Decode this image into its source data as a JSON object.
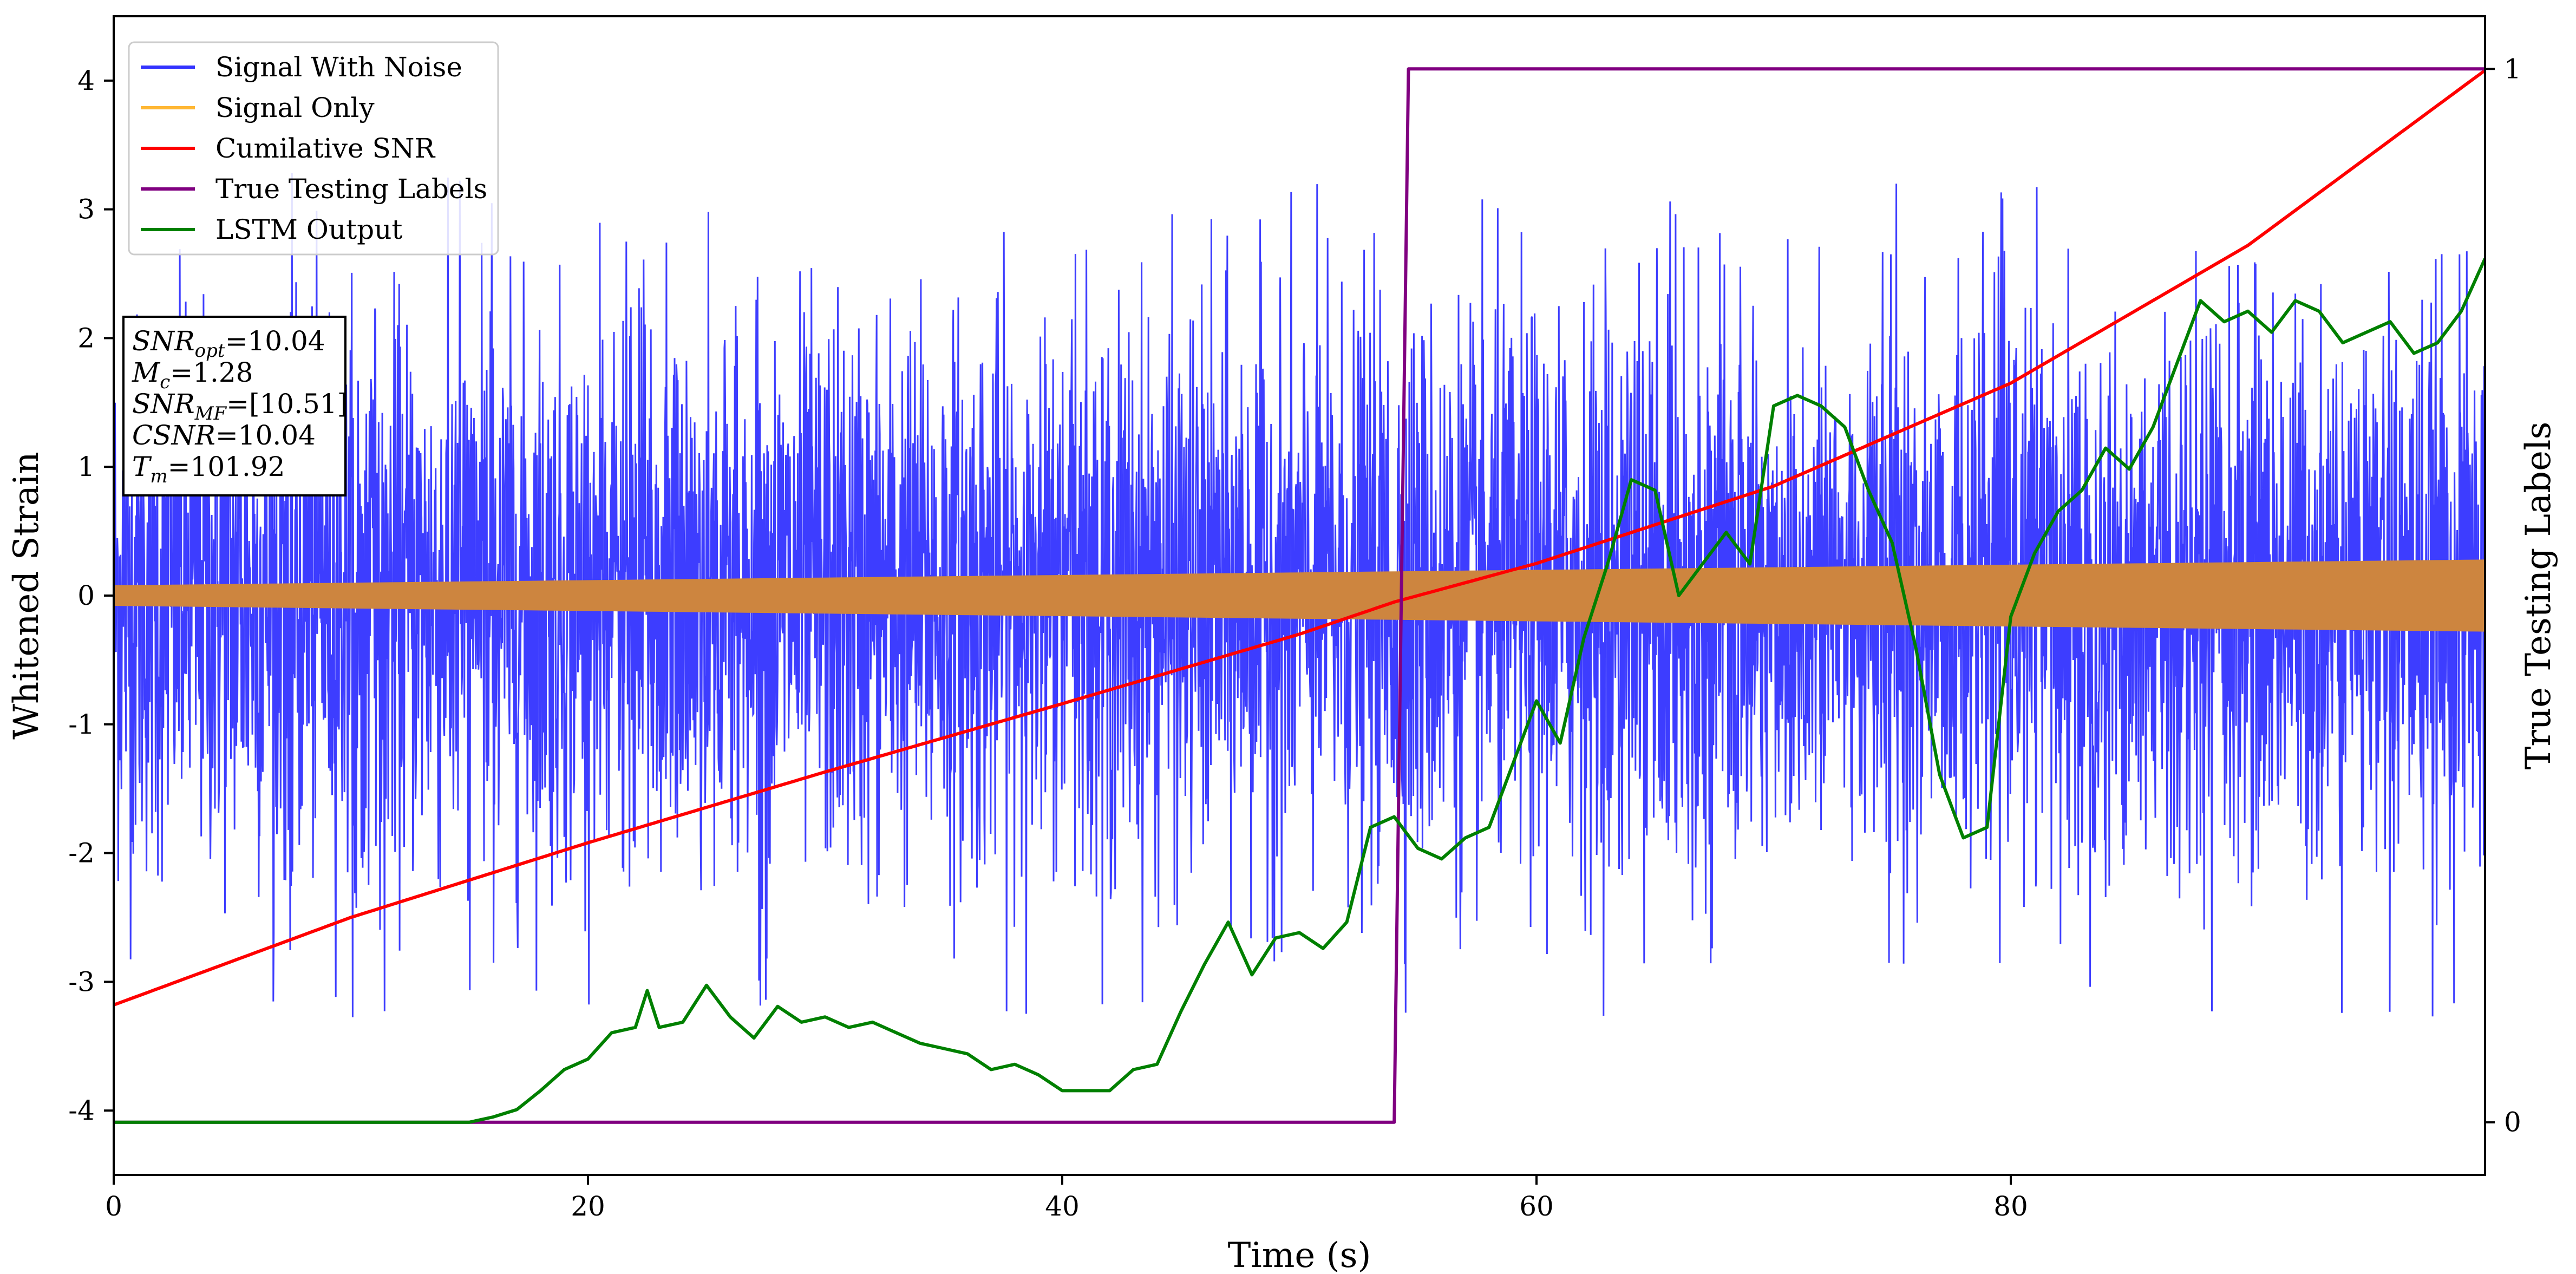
{
  "chart_data": {
    "type": "line",
    "xlabel": "Time (s)",
    "ylabel": "Whitened Strain",
    "y2label": "True Testing Labels",
    "xlim": [
      0,
      100
    ],
    "ylim": [
      -4.5,
      4.5
    ],
    "y2lim": [
      -0.05,
      1.05
    ],
    "xticks": [
      0,
      20,
      40,
      60,
      80
    ],
    "yticks": [
      -4,
      -3,
      -2,
      -1,
      0,
      1,
      2,
      3,
      4
    ],
    "y2ticks": [
      0,
      1
    ],
    "grid": false,
    "legend_position": "top-left",
    "legend": [
      {
        "name": "Signal With Noise",
        "color": "#3333ff"
      },
      {
        "name": "Signal Only",
        "color": "#ffb733"
      },
      {
        "name": "Cumilative SNR",
        "color": "#ff0000"
      },
      {
        "name": "True Testing Labels",
        "color": "#800080"
      },
      {
        "name": "LSTM Output",
        "color": "#008000"
      }
    ],
    "series": [
      {
        "name": "Signal With Noise",
        "axis": "left",
        "description_level": "dense noise band",
        "band_typical": [
          -1.4,
          1.4
        ],
        "band_extreme": [
          -3.3,
          3.3
        ],
        "color": "#3333ff"
      },
      {
        "name": "Signal Only",
        "axis": "left",
        "envelope_x": [
          0,
          100
        ],
        "envelope_amplitude": [
          0.08,
          0.28
        ],
        "color": "#cd853f"
      },
      {
        "name": "Cumilative SNR",
        "axis": "left",
        "x": [
          0,
          10,
          20,
          30,
          40,
          50,
          54,
          60,
          70,
          80,
          90,
          100
        ],
        "y": [
          -3.18,
          -2.5,
          -1.92,
          -1.37,
          -0.84,
          -0.3,
          -0.05,
          0.25,
          0.85,
          1.65,
          2.72,
          4.08
        ],
        "color": "#ff0000"
      },
      {
        "name": "True Testing Labels",
        "axis": "right",
        "x": [
          0,
          54.0,
          54.6,
          100
        ],
        "y": [
          0,
          0,
          1,
          1
        ],
        "color": "#800080"
      },
      {
        "name": "LSTM Output",
        "axis": "right",
        "x": [
          0,
          15,
          16,
          17,
          18,
          19,
          20,
          21,
          22,
          22.5,
          23,
          24,
          25,
          26,
          27,
          28,
          29,
          30,
          31,
          32,
          33,
          34,
          35,
          36,
          37,
          38,
          39,
          40,
          41,
          42,
          43,
          44,
          45,
          46,
          47,
          48,
          49,
          50,
          51,
          52,
          53,
          54,
          55,
          56,
          57,
          58,
          59,
          60,
          61,
          62,
          63,
          64,
          65,
          66,
          67,
          68,
          69,
          70,
          71,
          72,
          73,
          74,
          75,
          76,
          77,
          78,
          79,
          80,
          81,
          82,
          83,
          84,
          85,
          86,
          87,
          88,
          89,
          90,
          91,
          92,
          93,
          94,
          95,
          96,
          97,
          98,
          99,
          100
        ],
        "y": [
          0,
          0,
          0.005,
          0.012,
          0.03,
          0.05,
          0.06,
          0.085,
          0.09,
          0.125,
          0.09,
          0.095,
          0.13,
          0.1,
          0.08,
          0.11,
          0.095,
          0.1,
          0.09,
          0.095,
          0.085,
          0.075,
          0.07,
          0.065,
          0.05,
          0.055,
          0.045,
          0.03,
          0.03,
          0.03,
          0.05,
          0.055,
          0.105,
          0.15,
          0.19,
          0.14,
          0.175,
          0.18,
          0.165,
          0.19,
          0.28,
          0.29,
          0.26,
          0.25,
          0.27,
          0.28,
          0.34,
          0.4,
          0.36,
          0.46,
          0.53,
          0.61,
          0.6,
          0.5,
          0.53,
          0.56,
          0.53,
          0.68,
          0.69,
          0.68,
          0.66,
          0.6,
          0.55,
          0.45,
          0.33,
          0.27,
          0.28,
          0.48,
          0.54,
          0.58,
          0.6,
          0.64,
          0.62,
          0.66,
          0.72,
          0.78,
          0.76,
          0.77,
          0.75,
          0.78,
          0.77,
          0.74,
          0.75,
          0.76,
          0.73,
          0.74,
          0.77,
          0.82
        ],
        "color": "#008000"
      }
    ],
    "annotation_box": [
      {
        "base": "SNR",
        "sub": "opt",
        "value": "=10.04"
      },
      {
        "base": "M",
        "sub": "c",
        "value": "=1.28"
      },
      {
        "base": "SNR",
        "sub": "MF",
        "value": "=[10.51]"
      },
      {
        "base": "CSNR",
        "sub": "",
        "value": "=10.04"
      },
      {
        "base": "T",
        "sub": "m",
        "value": "=101.92"
      }
    ]
  }
}
